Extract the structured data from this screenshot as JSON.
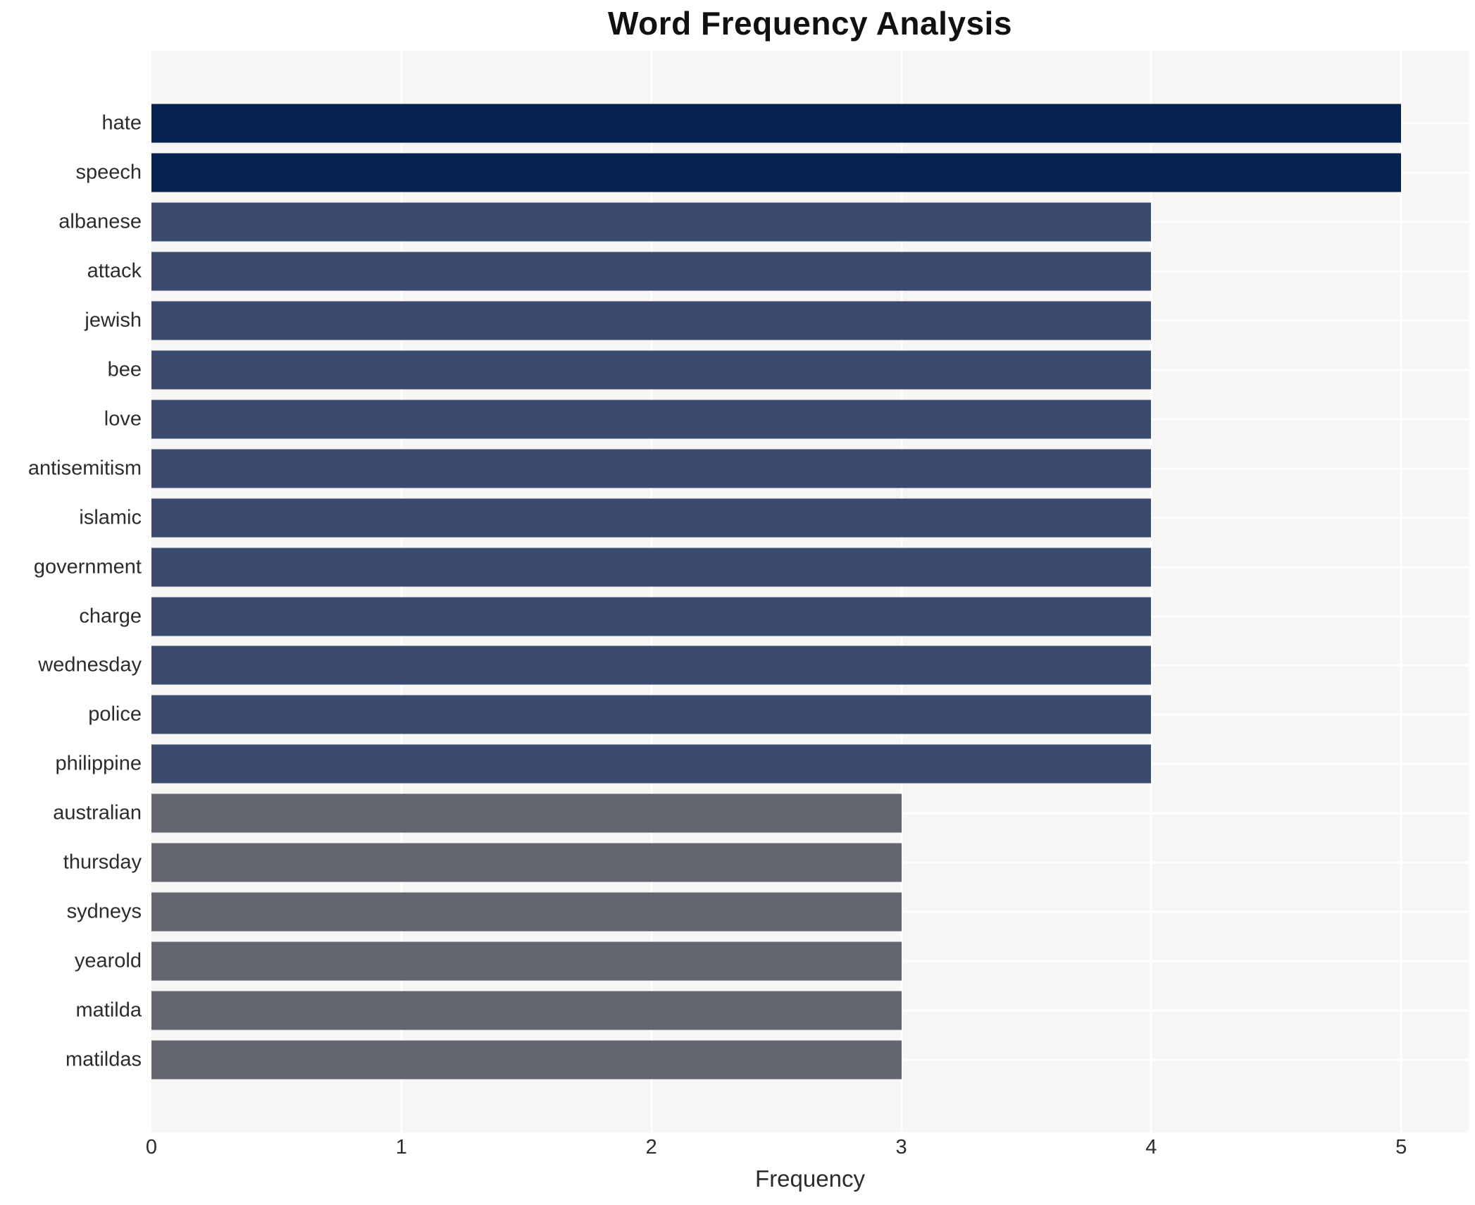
{
  "title": "Word Frequency Analysis",
  "chart_data": {
    "type": "bar",
    "orientation": "horizontal",
    "title": "Word Frequency Analysis",
    "xlabel": "Frequency",
    "ylabel": "",
    "xlim": [
      0,
      5.27
    ],
    "xticks": [
      0,
      1,
      2,
      3,
      4,
      5
    ],
    "grid": true,
    "legend": "none",
    "categories": [
      "hate",
      "speech",
      "albanese",
      "attack",
      "jewish",
      "bee",
      "love",
      "antisemitism",
      "islamic",
      "government",
      "charge",
      "wednesday",
      "police",
      "philippine",
      "australian",
      "thursday",
      "sydneys",
      "yearold",
      "matilda",
      "matildas"
    ],
    "values": [
      5,
      5,
      4,
      4,
      4,
      4,
      4,
      4,
      4,
      4,
      4,
      4,
      4,
      4,
      3,
      3,
      3,
      3,
      3,
      3
    ],
    "value_colors": {
      "5": "#062250",
      "4": "#3b4b70",
      "3": "#63666e"
    },
    "plot_bg": "#f6f6f4",
    "gridline_color": "#ffffff",
    "text_color": "#2c2c2c"
  }
}
